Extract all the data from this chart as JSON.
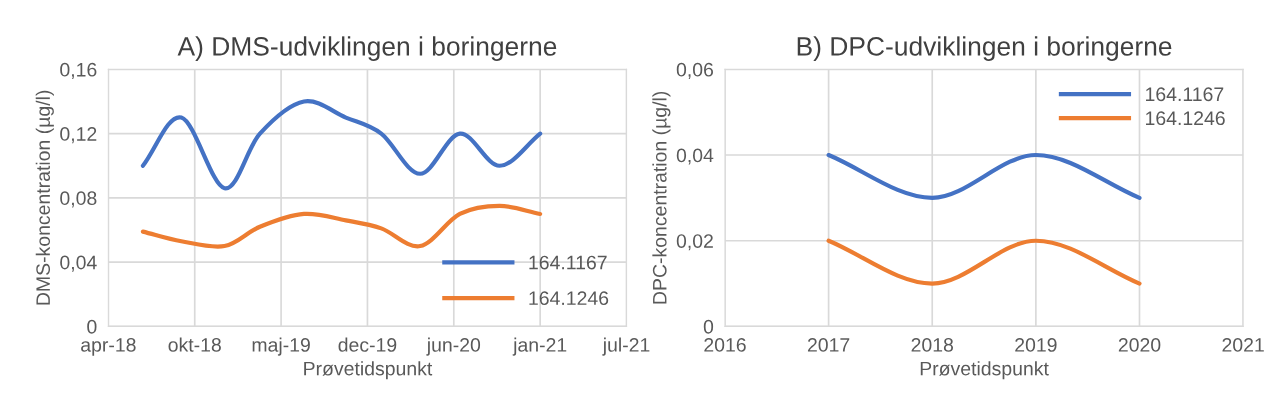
{
  "chart_data": [
    {
      "type": "line",
      "title": "A) DMS-udviklingen i boringerne",
      "xlabel": "Prøvetidspunkt",
      "ylabel": "DMS-koncentration (µg/l)",
      "x": [
        "2018-06-29",
        "2018-09-26",
        "2019-01-04",
        "2019-03-27",
        "2019-07-07",
        "2019-10-12",
        "2020-01-02",
        "2020-04-01",
        "2020-07-02",
        "2020-10-02",
        "2021-01-04"
      ],
      "series": [
        {
          "name": "164.1167",
          "color": "#4472c4",
          "values": [
            0.1,
            0.13,
            0.086,
            0.12,
            0.14,
            0.13,
            0.12,
            0.095,
            0.12,
            0.1,
            0.12
          ]
        },
        {
          "name": "164.1246",
          "color": "#ed7d31",
          "values": [
            0.059,
            0.053,
            0.05,
            0.062,
            0.07,
            0.066,
            0.061,
            0.05,
            0.07,
            0.075,
            0.07
          ]
        }
      ],
      "xlim": [
        "2018-04-10",
        "2021-07-23"
      ],
      "xticks": [
        {
          "value": "2018-04-10",
          "label": "apr-18"
        },
        {
          "value": "2018-10-27",
          "label": "okt-18"
        },
        {
          "value": "2019-05-15",
          "label": "maj-19"
        },
        {
          "value": "2019-12-01",
          "label": "dec-19"
        },
        {
          "value": "2020-06-18",
          "label": "jun-20"
        },
        {
          "value": "2021-01-04",
          "label": "jan-21"
        },
        {
          "value": "2021-07-23",
          "label": "jul-21"
        }
      ],
      "ylim": [
        0,
        0.16
      ],
      "yticks": [
        {
          "value": 0,
          "label": "0"
        },
        {
          "value": 0.04,
          "label": "0,04"
        },
        {
          "value": 0.08,
          "label": "0,08"
        },
        {
          "value": 0.12,
          "label": "0,12"
        },
        {
          "value": 0.16,
          "label": "0,16"
        }
      ],
      "grid": true,
      "legend": "bottom right",
      "marker": "none",
      "line_style": "solid"
    },
    {
      "type": "line",
      "title": "B) DPC-udviklingen i boringerne",
      "xlabel": "Prøvetidspunkt",
      "ylabel": "DPC-koncentration (µg/l)",
      "x": [
        2017,
        2018,
        2019,
        2020
      ],
      "series": [
        {
          "name": "164.1167",
          "color": "#4472c4",
          "values": [
            0.04,
            0.03,
            0.04,
            0.03
          ]
        },
        {
          "name": "164.1246",
          "color": "#ed7d31",
          "values": [
            0.02,
            0.01,
            0.02,
            0.01
          ]
        }
      ],
      "xlim": [
        2016,
        2021
      ],
      "xticks": [
        2016,
        2017,
        2018,
        2019,
        2020,
        2021
      ],
      "ylim": [
        0,
        0.06
      ],
      "yticks": [
        {
          "value": 0,
          "label": "0"
        },
        {
          "value": 0.02,
          "label": "0,02"
        },
        {
          "value": 0.04,
          "label": "0,04"
        },
        {
          "value": 0.06,
          "label": "0,06"
        }
      ],
      "grid": true,
      "legend": "top right",
      "marker": "none",
      "line_style": "solid"
    }
  ]
}
